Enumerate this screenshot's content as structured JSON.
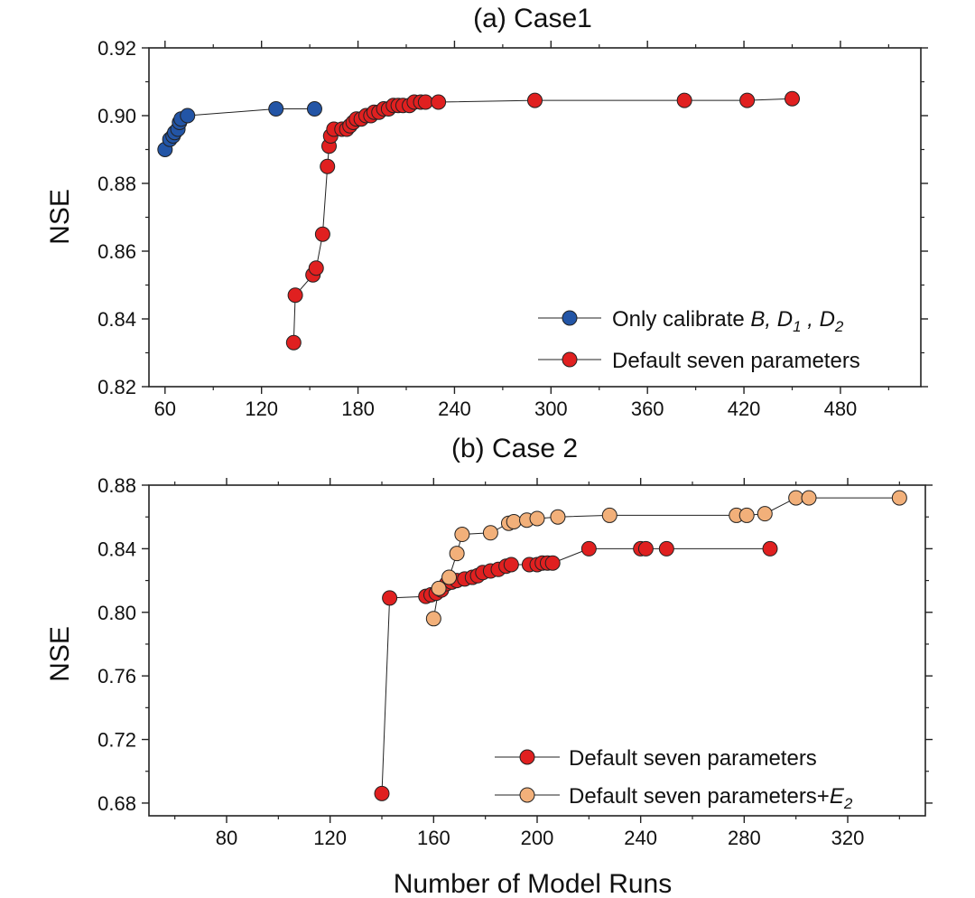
{
  "chart_data": [
    {
      "type": "scatter",
      "title": "(a) Case1",
      "xlabel": "",
      "ylabel": "NSE",
      "xlim": [
        50,
        530
      ],
      "ylim": [
        0.82,
        0.92
      ],
      "xticks": [
        "60",
        "120",
        "180",
        "240",
        "300",
        "360",
        "420",
        "480"
      ],
      "yticks": [
        "0.82",
        "0.84",
        "0.86",
        "0.88",
        "0.90",
        "0.92"
      ],
      "legend_position": "bottom-right",
      "series": [
        {
          "name": "Only calibrate B, D1 , D2",
          "legend_parts": {
            "base": "Only calibrate ",
            "B": "B, D",
            "sub1": "1",
            "mid": " , D",
            "sub2": "2"
          },
          "color": "#2355a6",
          "points": [
            [
              60,
              0.89
            ],
            [
              63,
              0.893
            ],
            [
              65,
              0.894
            ],
            [
              66,
              0.895
            ],
            [
              68,
              0.896
            ],
            [
              69,
              0.898
            ],
            [
              70,
              0.899
            ],
            [
              74,
              0.9
            ],
            [
              129,
              0.902
            ],
            [
              153,
              0.902
            ]
          ]
        },
        {
          "name": "Default seven parameters",
          "color": "#e02020",
          "points": [
            [
              140,
              0.833
            ],
            [
              141,
              0.847
            ],
            [
              152,
              0.853
            ],
            [
              154,
              0.855
            ],
            [
              158,
              0.865
            ],
            [
              161,
              0.885
            ],
            [
              162,
              0.891
            ],
            [
              163,
              0.894
            ],
            [
              165,
              0.896
            ],
            [
              170,
              0.896
            ],
            [
              173,
              0.896
            ],
            [
              175,
              0.897
            ],
            [
              177,
              0.898
            ],
            [
              179,
              0.899
            ],
            [
              182,
              0.899
            ],
            [
              185,
              0.9
            ],
            [
              188,
              0.9
            ],
            [
              190,
              0.901
            ],
            [
              193,
              0.901
            ],
            [
              196,
              0.902
            ],
            [
              199,
              0.902
            ],
            [
              202,
              0.903
            ],
            [
              205,
              0.903
            ],
            [
              208,
              0.903
            ],
            [
              212,
              0.903
            ],
            [
              215,
              0.904
            ],
            [
              219,
              0.904
            ],
            [
              222,
              0.904
            ],
            [
              230,
              0.904
            ],
            [
              290,
              0.9045
            ],
            [
              383,
              0.9045
            ],
            [
              422,
              0.9045
            ],
            [
              450,
              0.905
            ]
          ]
        }
      ]
    },
    {
      "type": "scatter",
      "title": "(b) Case 2",
      "xlabel": "Number of Model Runs",
      "ylabel": "NSE",
      "xlim": [
        50,
        350
      ],
      "ylim": [
        0.672,
        0.88
      ],
      "xticks": [
        "80",
        "120",
        "160",
        "200",
        "240",
        "280",
        "320"
      ],
      "yticks": [
        "0.68",
        "0.72",
        "0.76",
        "0.80",
        "0.84",
        "0.88"
      ],
      "legend_position": "bottom-right",
      "series": [
        {
          "name": "Default seven parameters",
          "color": "#e02020",
          "points": [
            [
              140,
              0.686
            ],
            [
              143,
              0.809
            ],
            [
              157,
              0.81
            ],
            [
              159,
              0.811
            ],
            [
              161,
              0.812
            ],
            [
              163,
              0.814
            ],
            [
              165,
              0.818
            ],
            [
              167,
              0.819
            ],
            [
              169,
              0.82
            ],
            [
              172,
              0.821
            ],
            [
              175,
              0.822
            ],
            [
              177,
              0.823
            ],
            [
              179,
              0.825
            ],
            [
              182,
              0.826
            ],
            [
              185,
              0.827
            ],
            [
              188,
              0.829
            ],
            [
              190,
              0.83
            ],
            [
              197,
              0.83
            ],
            [
              200,
              0.83
            ],
            [
              202,
              0.831
            ],
            [
              204,
              0.831
            ],
            [
              206,
              0.831
            ],
            [
              220,
              0.84
            ],
            [
              240,
              0.84
            ],
            [
              242,
              0.84
            ],
            [
              250,
              0.84
            ],
            [
              290,
              0.84
            ]
          ]
        },
        {
          "name": "Default seven parameters+E2",
          "legend_parts": {
            "base": "Default seven parameters+",
            "ital": "E",
            "sub": "2"
          },
          "color": "#f2b07a",
          "points": [
            [
              160,
              0.796
            ],
            [
              162,
              0.815
            ],
            [
              166,
              0.822
            ],
            [
              169,
              0.837
            ],
            [
              171,
              0.849
            ],
            [
              182,
              0.85
            ],
            [
              189,
              0.856
            ],
            [
              191,
              0.857
            ],
            [
              196,
              0.858
            ],
            [
              200,
              0.859
            ],
            [
              208,
              0.86
            ],
            [
              228,
              0.861
            ],
            [
              277,
              0.861
            ],
            [
              281,
              0.861
            ],
            [
              288,
              0.862
            ],
            [
              300,
              0.872
            ],
            [
              305,
              0.872
            ],
            [
              340,
              0.872
            ]
          ]
        }
      ]
    }
  ]
}
